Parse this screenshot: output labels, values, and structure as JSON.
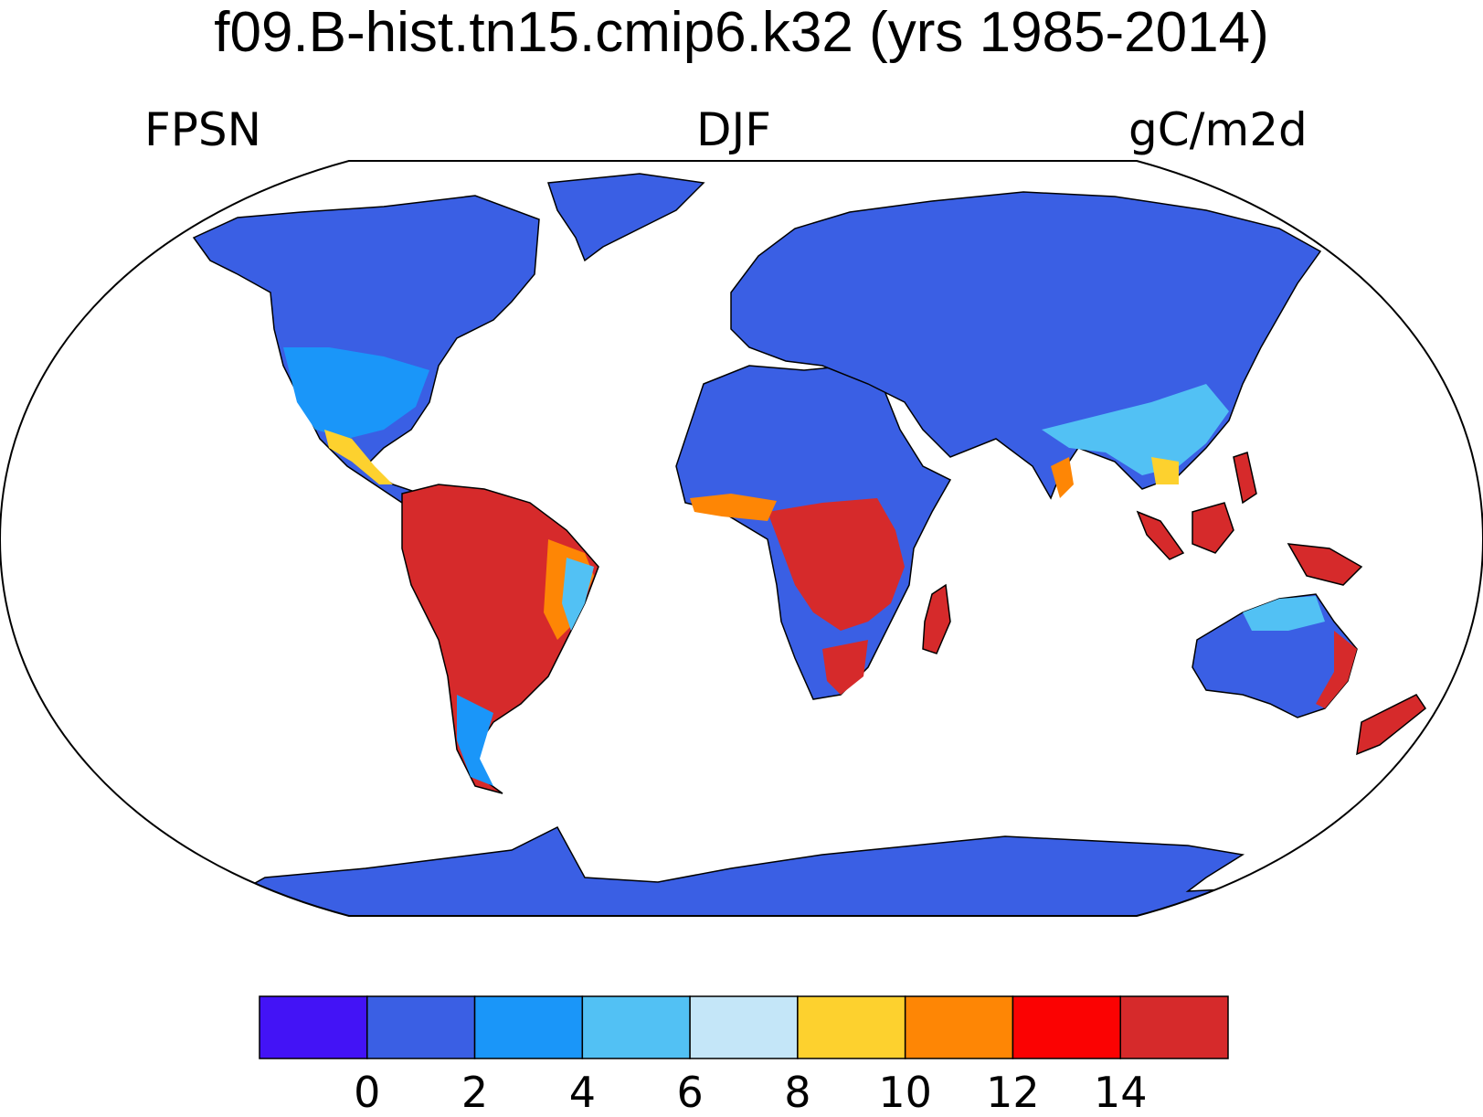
{
  "header": {
    "title": "f09.B-hist.tn15.cmip6.k32 (yrs 1985-2014)",
    "left_label": "FPSN",
    "center_label": "DJF",
    "right_label": "gC/m2d"
  },
  "colorbar": {
    "colors": [
      "#4313f6",
      "#3a5fe4",
      "#1a96f9",
      "#52c1f4",
      "#c4e6f8",
      "#fdd12e",
      "#fe8605",
      "#fb0202",
      "#d62a2b"
    ],
    "tick_labels": [
      "0",
      "2",
      "4",
      "6",
      "8",
      "10",
      "12",
      "14"
    ]
  },
  "map_legend": {
    "ocean": "#ffffff",
    "coastline": "#000000"
  }
}
